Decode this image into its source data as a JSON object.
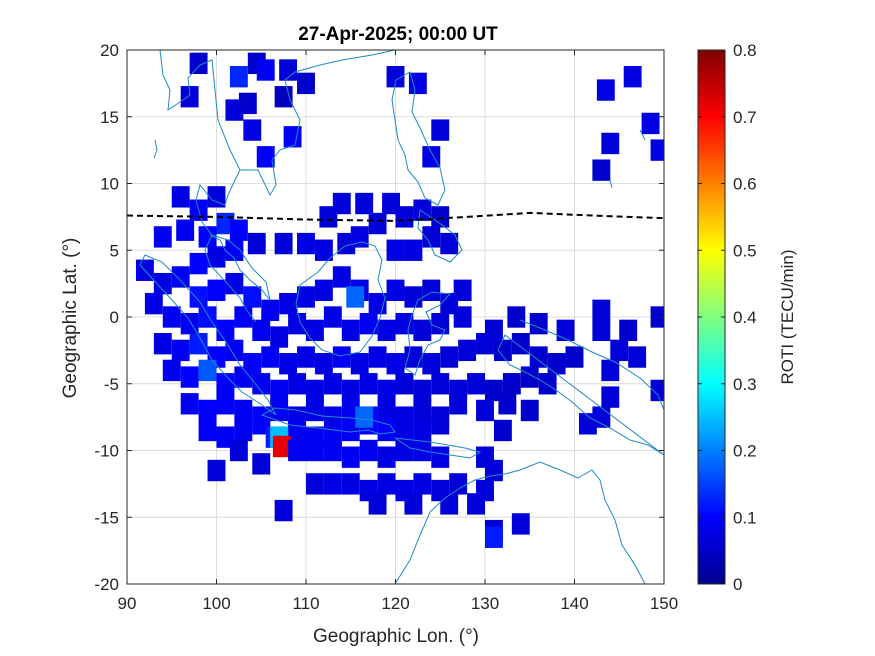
{
  "chart_data": {
    "type": "heatmap",
    "title": "27-Apr-2025; 00:00 UT",
    "xlabel": "Geographic Lon. (°)",
    "ylabel": "Geographic Lat. (°)",
    "xlim": [
      90,
      150
    ],
    "ylim": [
      -20,
      20
    ],
    "xticks": [
      "90",
      "100",
      "110",
      "120",
      "130",
      "140",
      "150"
    ],
    "yticks": [
      "20",
      "15",
      "10",
      "5",
      "0",
      "-5",
      "-10",
      "-15",
      "-20"
    ],
    "grid": true,
    "colorbar": {
      "label": "ROTI (TECU/min)",
      "colormap": "jet",
      "range": [
        0,
        0.8
      ],
      "ticks": [
        "0.8",
        "0.7",
        "0.6",
        "0.5",
        "0.4",
        "0.3",
        "0.2",
        "0.1",
        "0"
      ],
      "placement": "right"
    },
    "colors": {
      "coastline": "#1f8ac6",
      "equator_line": "#000000",
      "grid": "#dcdcdc"
    },
    "magnetic_equator": {
      "style": "dashed",
      "points": [
        [
          90,
          7.6
        ],
        [
          100,
          7.5
        ],
        [
          110,
          7.3
        ],
        [
          120,
          7.2
        ],
        [
          128,
          7.5
        ],
        [
          135,
          7.8
        ],
        [
          142,
          7.6
        ],
        [
          150,
          7.4
        ]
      ]
    },
    "points": [
      [
        98.0,
        19.0,
        0.06
      ],
      [
        104.5,
        19.0,
        0.06
      ],
      [
        102.5,
        18.0,
        0.13
      ],
      [
        105.5,
        18.5,
        0.09
      ],
      [
        108.0,
        18.5,
        0.07
      ],
      [
        97.0,
        16.5,
        0.07
      ],
      [
        102.0,
        15.5,
        0.07
      ],
      [
        103.5,
        16.0,
        0.06
      ],
      [
        107.5,
        16.5,
        0.05
      ],
      [
        110.0,
        17.5,
        0.06
      ],
      [
        104.0,
        14.0,
        0.08
      ],
      [
        108.5,
        13.5,
        0.09
      ],
      [
        105.5,
        12.0,
        0.1
      ],
      [
        120.0,
        18.0,
        0.07
      ],
      [
        122.5,
        17.5,
        0.08
      ],
      [
        125.0,
        14.0,
        0.07
      ],
      [
        124.0,
        12.0,
        0.08
      ],
      [
        143.5,
        17.0,
        0.08
      ],
      [
        146.5,
        18.0,
        0.08
      ],
      [
        148.5,
        14.5,
        0.08
      ],
      [
        144.0,
        13.0,
        0.07
      ],
      [
        149.5,
        12.5,
        0.08
      ],
      [
        143.0,
        11.0,
        0.06
      ],
      [
        96.0,
        9.0,
        0.08
      ],
      [
        98.0,
        8.0,
        0.09
      ],
      [
        100.0,
        9.0,
        0.07
      ],
      [
        101.0,
        7.0,
        0.13
      ],
      [
        102.5,
        6.5,
        0.1
      ],
      [
        96.5,
        6.5,
        0.09
      ],
      [
        94.0,
        6.0,
        0.09
      ],
      [
        99.0,
        6.0,
        0.1
      ],
      [
        98.0,
        4.0,
        0.1
      ],
      [
        100.0,
        4.5,
        0.08
      ],
      [
        102.0,
        5.0,
        0.1
      ],
      [
        104.5,
        5.5,
        0.07
      ],
      [
        107.5,
        5.5,
        0.07
      ],
      [
        110.0,
        5.5,
        0.08
      ],
      [
        112.0,
        5.0,
        0.08
      ],
      [
        114.5,
        5.5,
        0.07
      ],
      [
        116.0,
        6.0,
        0.08
      ],
      [
        118.0,
        7.0,
        0.07
      ],
      [
        119.5,
        8.5,
        0.07
      ],
      [
        116.5,
        8.5,
        0.07
      ],
      [
        121.0,
        7.5,
        0.07
      ],
      [
        123.0,
        8.0,
        0.07
      ],
      [
        125.0,
        7.5,
        0.06
      ],
      [
        124.0,
        6.0,
        0.07
      ],
      [
        126.0,
        5.5,
        0.07
      ],
      [
        122.0,
        5.0,
        0.08
      ],
      [
        120.0,
        5.0,
        0.08
      ],
      [
        112.5,
        7.5,
        0.07
      ],
      [
        114.0,
        8.5,
        0.07
      ],
      [
        92.0,
        3.5,
        0.08
      ],
      [
        94.0,
        2.5,
        0.08
      ],
      [
        96.0,
        3.0,
        0.09
      ],
      [
        98.0,
        1.5,
        0.11
      ],
      [
        100.0,
        2.0,
        0.1
      ],
      [
        102.0,
        2.5,
        0.08
      ],
      [
        104.0,
        1.5,
        0.11
      ],
      [
        106.0,
        0.5,
        0.09
      ],
      [
        108.0,
        1.0,
        0.08
      ],
      [
        110.0,
        1.5,
        0.08
      ],
      [
        112.0,
        2.0,
        0.08
      ],
      [
        114.0,
        3.0,
        0.08
      ],
      [
        116.0,
        2.0,
        0.08
      ],
      [
        115.5,
        1.5,
        0.18
      ],
      [
        118.0,
        1.0,
        0.08
      ],
      [
        120.0,
        2.0,
        0.08
      ],
      [
        122.0,
        1.5,
        0.07
      ],
      [
        124.0,
        2.0,
        0.07
      ],
      [
        126.0,
        1.0,
        0.07
      ],
      [
        127.5,
        2.0,
        0.07
      ],
      [
        93.0,
        1.0,
        0.08
      ],
      [
        95.0,
        0.0,
        0.09
      ],
      [
        97.0,
        -0.5,
        0.09
      ],
      [
        99.0,
        0.0,
        0.11
      ],
      [
        101.0,
        -1.0,
        0.1
      ],
      [
        103.0,
        0.0,
        0.09
      ],
      [
        105.0,
        -1.0,
        0.09
      ],
      [
        107.0,
        -1.5,
        0.08
      ],
      [
        109.0,
        -0.5,
        0.08
      ],
      [
        111.0,
        -1.0,
        0.08
      ],
      [
        113.0,
        0.0,
        0.08
      ],
      [
        115.0,
        -1.0,
        0.08
      ],
      [
        117.0,
        -0.5,
        0.09
      ],
      [
        119.0,
        -1.0,
        0.08
      ],
      [
        121.0,
        -0.5,
        0.08
      ],
      [
        123.0,
        -1.0,
        0.07
      ],
      [
        125.0,
        -0.5,
        0.07
      ],
      [
        127.5,
        0.0,
        0.07
      ],
      [
        94.0,
        -2.0,
        0.08
      ],
      [
        96.0,
        -2.5,
        0.09
      ],
      [
        98.0,
        -2.0,
        0.12
      ],
      [
        100.0,
        -3.0,
        0.1
      ],
      [
        102.0,
        -2.5,
        0.09
      ],
      [
        104.0,
        -3.5,
        0.1
      ],
      [
        106.0,
        -3.0,
        0.09
      ],
      [
        108.0,
        -3.5,
        0.08
      ],
      [
        110.0,
        -3.0,
        0.08
      ],
      [
        112.0,
        -3.5,
        0.08
      ],
      [
        114.0,
        -3.0,
        0.09
      ],
      [
        116.0,
        -3.5,
        0.08
      ],
      [
        118.0,
        -3.0,
        0.08
      ],
      [
        120.0,
        -3.5,
        0.08
      ],
      [
        122.0,
        -3.0,
        0.07
      ],
      [
        124.0,
        -3.5,
        0.07
      ],
      [
        126.0,
        -3.0,
        0.07
      ],
      [
        128.0,
        -2.5,
        0.07
      ],
      [
        130.0,
        -2.0,
        0.07
      ],
      [
        132.0,
        -2.5,
        0.06
      ],
      [
        134.0,
        -2.0,
        0.06
      ],
      [
        136.0,
        -3.0,
        0.06
      ],
      [
        138.0,
        -3.5,
        0.06
      ],
      [
        140.0,
        -3.0,
        0.06
      ],
      [
        131.0,
        -1.0,
        0.07
      ],
      [
        133.5,
        0.0,
        0.06
      ],
      [
        136.0,
        -0.5,
        0.06
      ],
      [
        139.0,
        -1.0,
        0.07
      ],
      [
        143.0,
        -1.0,
        0.07
      ],
      [
        145.0,
        -2.5,
        0.07
      ],
      [
        147.0,
        -3.0,
        0.07
      ],
      [
        143.0,
        0.5,
        0.07
      ],
      [
        146.0,
        -1.0,
        0.06
      ],
      [
        149.5,
        0.0,
        0.06
      ],
      [
        95.0,
        -4.0,
        0.09
      ],
      [
        97.0,
        -4.5,
        0.1
      ],
      [
        99.0,
        -4.0,
        0.17
      ],
      [
        101.0,
        -5.0,
        0.1
      ],
      [
        103.0,
        -4.5,
        0.09
      ],
      [
        105.0,
        -5.0,
        0.09
      ],
      [
        107.0,
        -5.5,
        0.09
      ],
      [
        109.0,
        -5.0,
        0.08
      ],
      [
        111.0,
        -5.5,
        0.08
      ],
      [
        113.0,
        -5.0,
        0.08
      ],
      [
        115.0,
        -5.5,
        0.08
      ],
      [
        117.0,
        -5.0,
        0.08
      ],
      [
        119.0,
        -5.5,
        0.08
      ],
      [
        121.0,
        -5.0,
        0.07
      ],
      [
        123.0,
        -5.5,
        0.07
      ],
      [
        125.0,
        -5.0,
        0.07
      ],
      [
        127.0,
        -5.5,
        0.07
      ],
      [
        129.0,
        -5.0,
        0.07
      ],
      [
        131.0,
        -5.5,
        0.06
      ],
      [
        133.0,
        -5.0,
        0.06
      ],
      [
        135.0,
        -4.5,
        0.06
      ],
      [
        137.0,
        -5.0,
        0.06
      ],
      [
        144.0,
        -4.0,
        0.07
      ],
      [
        149.5,
        -5.5,
        0.07
      ],
      [
        97.0,
        -6.5,
        0.09
      ],
      [
        99.0,
        -7.0,
        0.1
      ],
      [
        101.0,
        -6.5,
        0.1
      ],
      [
        103.0,
        -7.0,
        0.09
      ],
      [
        105.0,
        -7.5,
        0.09
      ],
      [
        107.0,
        -7.0,
        0.09
      ],
      [
        109.0,
        -7.5,
        0.08
      ],
      [
        111.0,
        -7.0,
        0.08
      ],
      [
        113.0,
        -7.5,
        0.08
      ],
      [
        115.0,
        -7.0,
        0.09
      ],
      [
        117.0,
        -7.5,
        0.09
      ],
      [
        119.0,
        -7.0,
        0.08
      ],
      [
        121.0,
        -7.5,
        0.08
      ],
      [
        123.0,
        -7.0,
        0.07
      ],
      [
        125.0,
        -7.5,
        0.07
      ],
      [
        127.0,
        -6.5,
        0.07
      ],
      [
        130.0,
        -7.0,
        0.07
      ],
      [
        132.5,
        -6.5,
        0.06
      ],
      [
        135.0,
        -7.0,
        0.06
      ],
      [
        144.0,
        -6.0,
        0.07
      ],
      [
        99.0,
        -8.5,
        0.1
      ],
      [
        101.0,
        -9.0,
        0.09
      ],
      [
        103.0,
        -8.5,
        0.09
      ],
      [
        105.0,
        -8.0,
        0.1
      ],
      [
        106.5,
        -9.0,
        0.12
      ],
      [
        109.0,
        -8.5,
        0.09
      ],
      [
        111.0,
        -9.0,
        0.09
      ],
      [
        113.0,
        -9.0,
        0.09
      ],
      [
        115.0,
        -8.5,
        0.09
      ],
      [
        117.0,
        -8.0,
        0.1
      ],
      [
        116.5,
        -7.5,
        0.18
      ],
      [
        119.0,
        -8.5,
        0.09
      ],
      [
        121.0,
        -9.0,
        0.08
      ],
      [
        123.0,
        -8.5,
        0.08
      ],
      [
        125.0,
        -8.0,
        0.07
      ],
      [
        141.5,
        -8.0,
        0.07
      ],
      [
        143.0,
        -7.5,
        0.07
      ],
      [
        132.0,
        -8.5,
        0.06
      ],
      [
        107.0,
        -9.0,
        0.25
      ],
      [
        107.3,
        -9.7,
        0.72
      ],
      [
        109.0,
        -10.0,
        0.09
      ],
      [
        111.0,
        -10.0,
        0.09
      ],
      [
        113.0,
        -10.0,
        0.09
      ],
      [
        115.0,
        -10.5,
        0.09
      ],
      [
        117.0,
        -10.0,
        0.09
      ],
      [
        119.0,
        -10.5,
        0.08
      ],
      [
        121.0,
        -10.0,
        0.08
      ],
      [
        123.0,
        -10.0,
        0.08
      ],
      [
        125.0,
        -10.5,
        0.08
      ],
      [
        102.5,
        -10.0,
        0.07
      ],
      [
        105.0,
        -11.0,
        0.07
      ],
      [
        100.0,
        -11.5,
        0.07
      ],
      [
        130.0,
        -10.5,
        0.07
      ],
      [
        131.0,
        -11.5,
        0.07
      ],
      [
        111.0,
        -12.5,
        0.07
      ],
      [
        113.0,
        -12.5,
        0.08
      ],
      [
        115.0,
        -12.5,
        0.08
      ],
      [
        117.0,
        -13.0,
        0.08
      ],
      [
        119.0,
        -12.5,
        0.08
      ],
      [
        121.0,
        -13.0,
        0.08
      ],
      [
        123.0,
        -12.5,
        0.08
      ],
      [
        125.0,
        -13.0,
        0.07
      ],
      [
        127.0,
        -12.5,
        0.07
      ],
      [
        130.0,
        -13.0,
        0.07
      ],
      [
        126.0,
        -14.0,
        0.07
      ],
      [
        118.0,
        -14.0,
        0.07
      ],
      [
        122.0,
        -14.0,
        0.07
      ],
      [
        107.5,
        -14.5,
        0.07
      ],
      [
        129.0,
        -14.0,
        0.07
      ],
      [
        131.0,
        -16.0,
        0.07
      ],
      [
        131.0,
        -16.5,
        0.12
      ],
      [
        134.0,
        -15.5,
        0.07
      ]
    ]
  }
}
